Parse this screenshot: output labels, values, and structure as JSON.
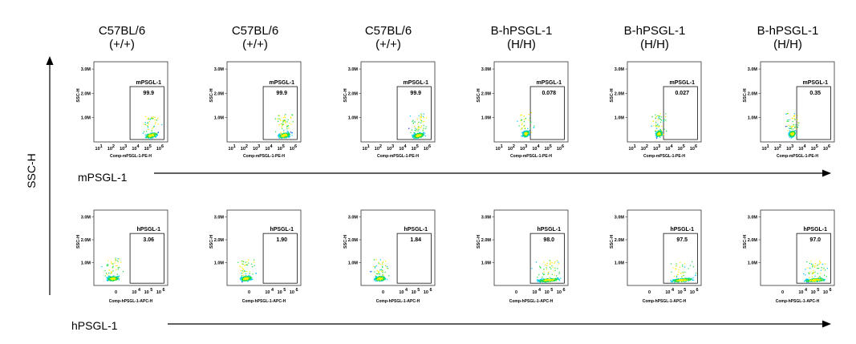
{
  "chart_data": {
    "type": "scatter",
    "y_axis_label": "SSC-H",
    "columns": [
      {
        "header_line1": "C57BL/6",
        "header_line2": "(+/+)"
      },
      {
        "header_line1": "C57BL/6",
        "header_line2": "(+/+)"
      },
      {
        "header_line1": "C57BL/6",
        "header_line2": "(+/+)"
      },
      {
        "header_line1": "B-hPSGL-1",
        "header_line2": "(H/H)"
      },
      {
        "header_line1": "B-hPSGL-1",
        "header_line2": "(H/H)"
      },
      {
        "header_line1": "B-hPSGL-1",
        "header_line2": "(H/H)"
      }
    ],
    "rows": [
      {
        "row_label": "mPSGL-1",
        "x_axis_title": "Comp-mPSGL-1-PE-H",
        "y_axis_title": "SSC-H",
        "x_scale": "log",
        "x_ticks": [
          "10",
          "1",
          "10",
          "2",
          "10",
          "3",
          "10",
          "4",
          "10",
          "5",
          "10",
          "6"
        ],
        "y_ticks": [
          "3.0M",
          "2.0M",
          "1.0M"
        ],
        "ylim": [
          0,
          3300000
        ],
        "gate_name": "mPSGL-1",
        "panels": [
          {
            "gate_value": "99.9"
          },
          {
            "gate_value": "99.9"
          },
          {
            "gate_value": "99.9"
          },
          {
            "gate_value": "0.078"
          },
          {
            "gate_value": "0.027"
          },
          {
            "gate_value": "0.35"
          }
        ]
      },
      {
        "row_label": "hPSGL-1",
        "x_axis_title": "Comp-hPSGL-1-APC-H",
        "y_axis_title": "SSC-H",
        "x_scale": "biexponential",
        "x_ticks": [
          "0",
          "10",
          "4",
          "10",
          "5",
          "10",
          "6"
        ],
        "y_ticks": [
          "3.0M",
          "2.0M",
          "1.0M"
        ],
        "ylim": [
          0,
          3300000
        ],
        "gate_name": "hPSGL-1",
        "panels": [
          {
            "gate_value": "3.06"
          },
          {
            "gate_value": "1.90"
          },
          {
            "gate_value": "1.84"
          },
          {
            "gate_value": "98.0"
          },
          {
            "gate_value": "97.5"
          },
          {
            "gate_value": "97.0"
          }
        ]
      }
    ],
    "density_colors": [
      "#2b2bff",
      "#00c8ff",
      "#22dd44",
      "#ffee00"
    ]
  }
}
